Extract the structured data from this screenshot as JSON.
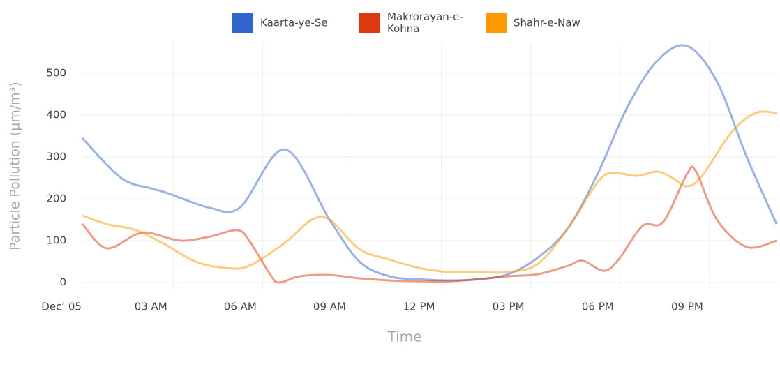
{
  "chart_data": {
    "type": "line",
    "y_axis_label": "Particle Pollution (µm/m³)",
    "x_axis_label": "Time",
    "xlim": [
      0.7,
      24
    ],
    "ylim": [
      -15,
      575
    ],
    "xticks": [
      {
        "value": 0,
        "label": "Dec‘ 05"
      },
      {
        "value": 3,
        "label": "03 AM"
      },
      {
        "value": 6,
        "label": "06 AM"
      },
      {
        "value": 9,
        "label": "09 AM"
      },
      {
        "value": 12,
        "label": "12 PM"
      },
      {
        "value": 15,
        "label": "03 PM"
      },
      {
        "value": 18,
        "label": "06 PM"
      },
      {
        "value": 21,
        "label": "09 PM"
      }
    ],
    "yticks": [
      0,
      100,
      200,
      300,
      400,
      500
    ],
    "grid": true,
    "legend": "top",
    "series": [
      {
        "name": "Kaarta-ye-Se",
        "color": "#3366cc",
        "x": [
          0.7,
          2,
          3,
          3.5,
          5,
          6,
          7.5,
          9,
          10,
          11,
          12,
          13,
          14,
          15,
          16,
          17,
          18,
          19,
          20,
          21,
          22,
          23,
          24
        ],
        "values": [
          345,
          250,
          225,
          215,
          178,
          180,
          318,
          150,
          50,
          15,
          8,
          5,
          8,
          20,
          60,
          130,
          260,
          420,
          530,
          565,
          480,
          300,
          140
        ]
      },
      {
        "name": "Makrorayan-e-Kohna",
        "color": "#dc3912",
        "x": [
          0.7,
          1.5,
          2.5,
          3,
          4,
          5,
          5.9,
          6.3,
          7,
          7.3,
          8,
          9,
          10,
          11,
          12,
          13,
          14,
          15,
          16,
          17,
          17.5,
          18.2,
          18.7,
          19.5,
          20.2,
          21,
          21.3,
          22,
          23,
          24
        ],
        "values": [
          140,
          82,
          115,
          118,
          100,
          110,
          125,
          100,
          20,
          0,
          15,
          18,
          10,
          5,
          3,
          3,
          8,
          15,
          20,
          40,
          52,
          28,
          55,
          135,
          145,
          260,
          265,
          150,
          85,
          100
        ]
      },
      {
        "name": "Shahr-e-Naw",
        "color": "#ff9900",
        "x": [
          0.7,
          1.5,
          2.5,
          3.5,
          4.5,
          5.5,
          6.3,
          7.5,
          8.4,
          9,
          10,
          11,
          12,
          13,
          14,
          15,
          16,
          17,
          18,
          18.5,
          19.3,
          20,
          20.5,
          21,
          21.5,
          22.5,
          23.3,
          24
        ],
        "values": [
          160,
          140,
          125,
          90,
          50,
          35,
          40,
          95,
          150,
          150,
          80,
          55,
          35,
          25,
          25,
          25,
          45,
          130,
          240,
          262,
          255,
          265,
          250,
          230,
          255,
          360,
          405,
          405
        ]
      }
    ]
  }
}
